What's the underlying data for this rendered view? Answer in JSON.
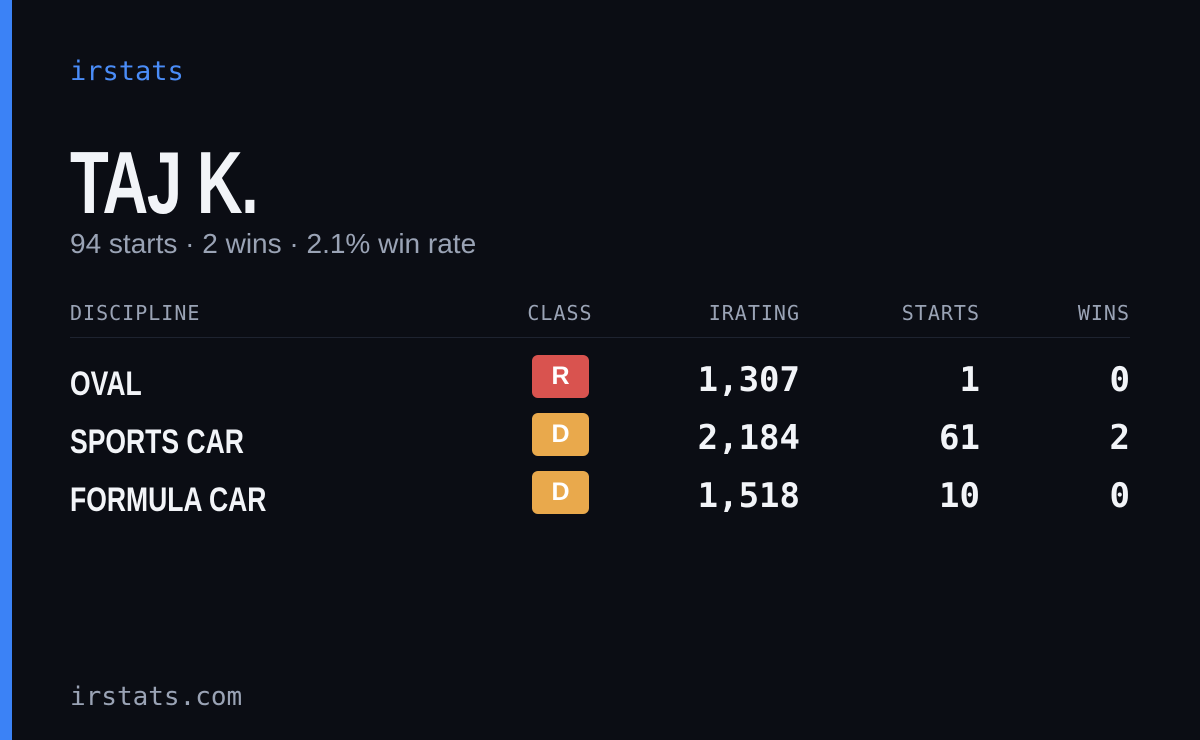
{
  "brand": "irstats",
  "driver": {
    "name": "TAJ K.",
    "summary": "94 starts · 2 wins · 2.1% win rate"
  },
  "table": {
    "headers": [
      "DISCIPLINE",
      "CLASS",
      "IRATING",
      "STARTS",
      "WINS"
    ],
    "rows": [
      [
        "OVAL",
        "R",
        "1,307",
        "1",
        "0"
      ],
      [
        "SPORTS CAR",
        "D",
        "2,184",
        "61",
        "2"
      ],
      [
        "FORMULA CAR",
        "D",
        "1,518",
        "10",
        "0"
      ]
    ],
    "class_colors": {
      "R": "#d9534f",
      "D": "#e9a94c"
    }
  },
  "footer": "irstats.com"
}
